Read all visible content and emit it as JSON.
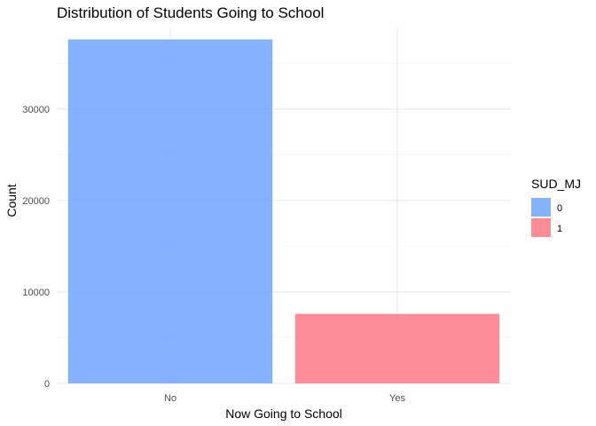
{
  "chart_data": {
    "type": "bar",
    "title": "Distribution of Students Going to School",
    "xlabel": "Now Going to School",
    "ylabel": "Count",
    "categories": [
      "No",
      "Yes"
    ],
    "series": [
      {
        "name": "0",
        "values": [
          37600,
          null
        ],
        "color": "#619CFF"
      },
      {
        "name": "1",
        "values": [
          null,
          7600
        ],
        "color": "#FF6B78"
      }
    ],
    "ylim": [
      0,
      39000
    ],
    "yticks": [
      0,
      10000,
      20000,
      30000
    ],
    "ytick_labels": [
      "0",
      "10000",
      "20000",
      "30000"
    ],
    "grid": true,
    "legend": {
      "title": "SUD_MJ",
      "placement": "right",
      "entries": [
        {
          "label": "0",
          "color": "#619CFF"
        },
        {
          "label": "1",
          "color": "#FF6B78"
        }
      ]
    }
  }
}
